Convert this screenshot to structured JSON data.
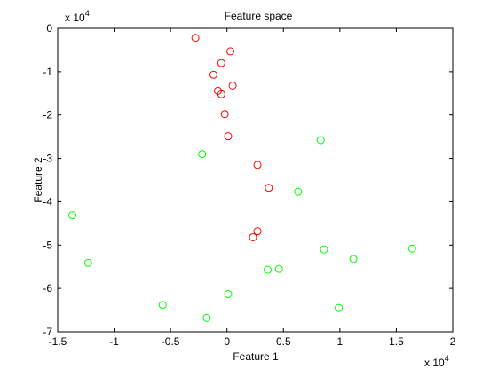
{
  "chart_data": {
    "type": "scatter",
    "title": "Feature space",
    "xlabel": "Feature 1",
    "ylabel": "Feature 2",
    "x_exponent_label": "x 10",
    "x_exponent_power": "4",
    "y_exponent_label": "x 10",
    "y_exponent_power": "4",
    "xlim": [
      -15000,
      20000
    ],
    "ylim": [
      -70000,
      0
    ],
    "xticks": [
      -15000,
      -10000,
      -5000,
      0,
      5000,
      10000,
      15000,
      20000
    ],
    "xtick_labels": [
      "-1.5",
      "-1",
      "-0.5",
      "0",
      "0.5",
      "1",
      "1.5",
      "2"
    ],
    "yticks": [
      0,
      -10000,
      -20000,
      -30000,
      -40000,
      -50000,
      -60000,
      -70000
    ],
    "ytick_labels": [
      "0",
      "-1",
      "-2",
      "-3",
      "-4",
      "-5",
      "-6",
      "-7"
    ],
    "grid": false,
    "marker": "circle",
    "series": [
      {
        "color": "#ff0000",
        "points": [
          [
            -2800,
            -2200
          ],
          [
            300,
            -5300
          ],
          [
            -500,
            -8000
          ],
          [
            -1200,
            -10700
          ],
          [
            500,
            -13200
          ],
          [
            -800,
            -14400
          ],
          [
            -500,
            -15200
          ],
          [
            -200,
            -19800
          ],
          [
            100,
            -24900
          ],
          [
            2700,
            -31500
          ],
          [
            3700,
            -36800
          ],
          [
            2700,
            -46800
          ],
          [
            2300,
            -48200
          ]
        ]
      },
      {
        "color": "#00ff00",
        "points": [
          [
            8300,
            -25800
          ],
          [
            -2200,
            -29000
          ],
          [
            6300,
            -37700
          ],
          [
            -13700,
            -43100
          ],
          [
            8600,
            -51000
          ],
          [
            16400,
            -50800
          ],
          [
            11200,
            -53200
          ],
          [
            -12300,
            -54100
          ],
          [
            4600,
            -55500
          ],
          [
            3600,
            -55700
          ],
          [
            100,
            -61300
          ],
          [
            -5700,
            -63800
          ],
          [
            9900,
            -64500
          ],
          [
            -1800,
            -66800
          ]
        ]
      }
    ]
  }
}
